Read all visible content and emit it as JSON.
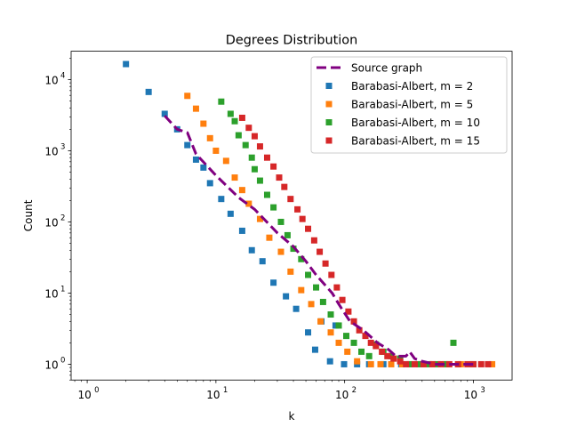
{
  "chart_data": {
    "type": "scatter",
    "title": "Degrees Distribution",
    "xlabel": "k",
    "ylabel": "Count",
    "xscale": "log",
    "yscale": "log",
    "xlim": [
      0.75,
      2000
    ],
    "ylim": [
      0.6,
      25000
    ],
    "grid": false,
    "legend_position": "top-right",
    "x_ticks": [
      {
        "value": 1,
        "base": "10",
        "exp": "0"
      },
      {
        "value": 10,
        "base": "10",
        "exp": "1"
      },
      {
        "value": 100,
        "base": "10",
        "exp": "2"
      },
      {
        "value": 1000,
        "base": "10",
        "exp": "3"
      }
    ],
    "y_ticks": [
      {
        "value": 1,
        "base": "10",
        "exp": "0"
      },
      {
        "value": 10,
        "base": "10",
        "exp": "1"
      },
      {
        "value": 100,
        "base": "10",
        "exp": "2"
      },
      {
        "value": 1000,
        "base": "10",
        "exp": "3"
      },
      {
        "value": 10000,
        "base": "10",
        "exp": "4"
      }
    ],
    "series": [
      {
        "name": "Source graph",
        "kind": "line",
        "color": "#800080",
        "points": [
          [
            4,
            3100
          ],
          [
            5,
            2000
          ],
          [
            6,
            1800
          ],
          [
            7,
            900
          ],
          [
            10,
            450
          ],
          [
            15,
            220
          ],
          [
            20,
            150
          ],
          [
            30,
            70
          ],
          [
            40,
            45
          ],
          [
            50,
            28
          ],
          [
            60,
            18
          ],
          [
            80,
            10
          ],
          [
            90,
            7
          ],
          [
            110,
            4
          ],
          [
            140,
            3
          ],
          [
            180,
            2
          ],
          [
            220,
            1.6
          ],
          [
            250,
            1.3
          ],
          [
            300,
            1.3
          ],
          [
            320,
            1.5
          ],
          [
            350,
            1.2
          ],
          [
            400,
            1.1
          ],
          [
            500,
            1
          ],
          [
            1000,
            1
          ]
        ]
      },
      {
        "name": "Barabasi-Albert, m = 2",
        "kind": "scatter",
        "color": "#1f77b4",
        "points": [
          [
            2,
            16500
          ],
          [
            3,
            6700
          ],
          [
            4,
            3300
          ],
          [
            5,
            2000
          ],
          [
            6,
            1200
          ],
          [
            7,
            750
          ],
          [
            8,
            580
          ],
          [
            9,
            350
          ],
          [
            11,
            210
          ],
          [
            13,
            130
          ],
          [
            16,
            75
          ],
          [
            19,
            40
          ],
          [
            23,
            28
          ],
          [
            28,
            14
          ],
          [
            35,
            9
          ],
          [
            42,
            6
          ],
          [
            52,
            2.8
          ],
          [
            59,
            1.6
          ],
          [
            66,
            4
          ],
          [
            77,
            1.1
          ],
          [
            85,
            3.5
          ],
          [
            99,
            1
          ],
          [
            125,
            1
          ],
          [
            155,
            1
          ],
          [
            200,
            1
          ],
          [
            275,
            1
          ]
        ]
      },
      {
        "name": "Barabasi-Albert, m = 5",
        "kind": "scatter",
        "color": "#ff7f0e",
        "points": [
          [
            6,
            5900
          ],
          [
            7,
            3900
          ],
          [
            8,
            2400
          ],
          [
            9,
            1500
          ],
          [
            10,
            1000
          ],
          [
            12,
            720
          ],
          [
            14,
            420
          ],
          [
            16,
            280
          ],
          [
            18,
            180
          ],
          [
            22,
            110
          ],
          [
            26,
            60
          ],
          [
            32,
            38
          ],
          [
            38,
            20
          ],
          [
            46,
            11
          ],
          [
            55,
            7
          ],
          [
            65,
            4
          ],
          [
            78,
            2.8
          ],
          [
            90,
            2
          ],
          [
            105,
            1.5
          ],
          [
            125,
            1.1
          ],
          [
            160,
            1
          ],
          [
            190,
            1
          ],
          [
            230,
            1
          ],
          [
            280,
            1
          ],
          [
            320,
            1
          ],
          [
            400,
            1
          ],
          [
            480,
            1
          ],
          [
            600,
            1
          ],
          [
            800,
            1
          ],
          [
            1400,
            1
          ]
        ]
      },
      {
        "name": "Barabasi-Albert, m = 10",
        "kind": "scatter",
        "color": "#2ca02c",
        "points": [
          [
            11,
            4900
          ],
          [
            13,
            3300
          ],
          [
            14,
            2600
          ],
          [
            15,
            1650
          ],
          [
            17,
            1200
          ],
          [
            19,
            800
          ],
          [
            20,
            550
          ],
          [
            22,
            380
          ],
          [
            25,
            240
          ],
          [
            28,
            160
          ],
          [
            32,
            100
          ],
          [
            36,
            65
          ],
          [
            40,
            42
          ],
          [
            46,
            30
          ],
          [
            52,
            18
          ],
          [
            60,
            12
          ],
          [
            68,
            7.5
          ],
          [
            78,
            5
          ],
          [
            90,
            3.5
          ],
          [
            103,
            2.5
          ],
          [
            118,
            2
          ],
          [
            135,
            1.5
          ],
          [
            155,
            1.3
          ],
          [
            175,
            1.9
          ],
          [
            200,
            1.5
          ],
          [
            230,
            1.3
          ],
          [
            270,
            1.2
          ],
          [
            320,
            1
          ],
          [
            380,
            1
          ],
          [
            450,
            1
          ],
          [
            530,
            1
          ],
          [
            620,
            1
          ],
          [
            700,
            2
          ],
          [
            1000,
            1
          ]
        ]
      },
      {
        "name": "Barabasi-Albert, m = 15",
        "kind": "scatter",
        "color": "#d62728",
        "points": [
          [
            16,
            2900
          ],
          [
            18,
            2100
          ],
          [
            20,
            1600
          ],
          [
            22,
            1150
          ],
          [
            25,
            800
          ],
          [
            28,
            600
          ],
          [
            31,
            420
          ],
          [
            34,
            310
          ],
          [
            38,
            210
          ],
          [
            43,
            150
          ],
          [
            47,
            110
          ],
          [
            52,
            80
          ],
          [
            58,
            55
          ],
          [
            64,
            38
          ],
          [
            71,
            26
          ],
          [
            79,
            18
          ],
          [
            87,
            12
          ],
          [
            96,
            8
          ],
          [
            107,
            5.5
          ],
          [
            118,
            4
          ],
          [
            130,
            3
          ],
          [
            145,
            2.5
          ],
          [
            160,
            2
          ],
          [
            175,
            1.8
          ],
          [
            195,
            1.5
          ],
          [
            215,
            1.3
          ],
          [
            240,
            1.2
          ],
          [
            270,
            1.1
          ],
          [
            300,
            1
          ],
          [
            350,
            1
          ],
          [
            410,
            1
          ],
          [
            480,
            1
          ],
          [
            560,
            1
          ],
          [
            650,
            1
          ],
          [
            760,
            1
          ],
          [
            900,
            1
          ],
          [
            1000,
            1
          ],
          [
            1150,
            1
          ],
          [
            1300,
            1
          ]
        ]
      }
    ]
  }
}
